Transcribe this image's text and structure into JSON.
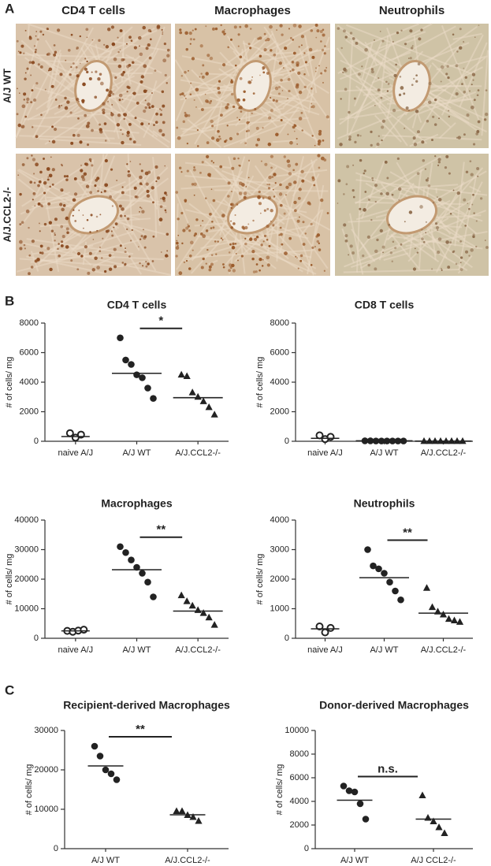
{
  "panels": {
    "a": {
      "label": "A",
      "columns": [
        "CD4 T cells",
        "Macrophages",
        "Neutrophils"
      ],
      "rows": [
        "A/J WT",
        "A/J.CCL2-/-"
      ]
    },
    "b": {
      "label": "B"
    },
    "c": {
      "label": "C"
    }
  },
  "chart_data": [
    {
      "type": "dotplot",
      "title": "CD4 T cells",
      "ylabel": "# of cells/ mg",
      "categories": [
        "naive A/J",
        "A/J WT",
        "A/J.CCL2-/-"
      ],
      "markers": [
        "open-circle",
        "circle",
        "triangle"
      ],
      "values": [
        [
          550,
          250,
          450
        ],
        [
          7000,
          5500,
          5200,
          4500,
          4300,
          3600,
          2900
        ],
        [
          4500,
          4400,
          3300,
          3000,
          2700,
          2300,
          1800
        ]
      ],
      "means": [
        320,
        4600,
        2950
      ],
      "ylim": [
        0,
        8000
      ],
      "yticks": [
        0,
        2000,
        4000,
        6000,
        8000
      ],
      "annotation": {
        "label": "*",
        "between": [
          1,
          2
        ]
      }
    },
    {
      "type": "dotplot",
      "title": "CD8 T cells",
      "ylabel": "# of cells/ mg",
      "categories": [
        "naive A/J",
        "A/J WT",
        "A/J.CCL2-/-"
      ],
      "markers": [
        "open-circle",
        "circle",
        "triangle"
      ],
      "values": [
        [
          400,
          150,
          300
        ],
        [
          30,
          30,
          20,
          20,
          20,
          20,
          20,
          20
        ],
        [
          10,
          10,
          10,
          10,
          10,
          10,
          10,
          10
        ]
      ],
      "means": [
        200,
        30,
        10
      ],
      "ylim": [
        0,
        8000
      ],
      "yticks": [
        0,
        2000,
        4000,
        6000,
        8000
      ]
    },
    {
      "type": "dotplot",
      "title": "Macrophages",
      "ylabel": "# of cells/ mg",
      "categories": [
        "naive A/J",
        "A/J WT",
        "A/J.CCL2-/-"
      ],
      "markers": [
        "open-circle",
        "circle",
        "triangle"
      ],
      "values": [
        [
          2500,
          2200,
          2600,
          2900
        ],
        [
          31000,
          29000,
          26500,
          24000,
          22000,
          19000,
          14000
        ],
        [
          14500,
          12500,
          11000,
          9500,
          8500,
          7000,
          4500
        ]
      ],
      "means": [
        2500,
        23200,
        9200
      ],
      "ylim": [
        0,
        40000
      ],
      "yticks": [
        0,
        10000,
        20000,
        30000,
        40000
      ],
      "annotation": {
        "label": "**",
        "between": [
          1,
          2
        ]
      }
    },
    {
      "type": "dotplot",
      "title": "Neutrophils",
      "ylabel": "# of cells/ mg",
      "categories": [
        "naive A/J",
        "A/J WT",
        "A/J.CCL2-/-"
      ],
      "markers": [
        "open-circle",
        "circle",
        "triangle"
      ],
      "values": [
        [
          400,
          200,
          350
        ],
        [
          3000,
          2450,
          2350,
          2200,
          1900,
          1600,
          1300
        ],
        [
          1700,
          1050,
          900,
          800,
          650,
          600,
          550
        ]
      ],
      "means": [
        320,
        2050,
        850
      ],
      "ylim": [
        0,
        4000
      ],
      "yticks": [
        0,
        1000,
        2000,
        3000,
        4000
      ],
      "annotation": {
        "label": "**",
        "between": [
          1,
          2
        ]
      }
    },
    {
      "type": "dotplot",
      "title": "Recipient-derived Macrophages",
      "ylabel": "# of cells/ mg",
      "categories": [
        "A/J WT",
        "A/J.CCL2-/-"
      ],
      "markers": [
        "circle",
        "triangle"
      ],
      "values": [
        [
          26000,
          23500,
          20000,
          19000,
          17500
        ],
        [
          9500,
          9500,
          8500,
          8000,
          7000
        ]
      ],
      "means": [
        21000,
        8600
      ],
      "ylim": [
        0,
        30000
      ],
      "yticks": [
        0,
        10000,
        20000,
        30000
      ],
      "annotation": {
        "label": "**",
        "between": [
          0,
          1
        ]
      }
    },
    {
      "type": "dotplot",
      "title": "Donor-derived Macrophages",
      "ylabel": "# of cells/ mg",
      "categories": [
        "A/J WT",
        "A/J CCL2-/-"
      ],
      "markers": [
        "circle",
        "triangle"
      ],
      "values": [
        [
          5300,
          4900,
          4800,
          3800,
          2500
        ],
        [
          4500,
          2600,
          2300,
          1800,
          1300
        ]
      ],
      "means": [
        4100,
        2500
      ],
      "ylim": [
        0,
        10000
      ],
      "yticks": [
        0,
        2000,
        4000,
        6000,
        8000,
        10000
      ],
      "annotation": {
        "label": "n.s.",
        "between": [
          0,
          1
        ]
      }
    }
  ]
}
